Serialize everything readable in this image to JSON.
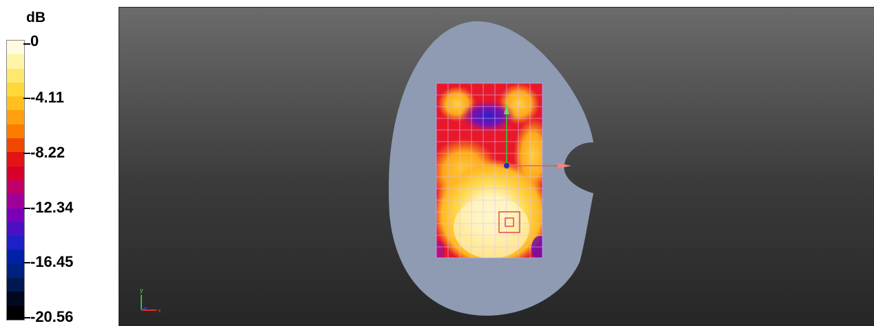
{
  "legend": {
    "unit": "dB",
    "ticks": [
      "0",
      "-4.11",
      "-8.22",
      "-12.34",
      "-16.45",
      "-20.56"
    ],
    "colors": [
      "#fffbe0",
      "#fff5a8",
      "#ffe870",
      "#ffd83a",
      "#ffc020",
      "#ffa010",
      "#ff7a00",
      "#f04800",
      "#e41414",
      "#d8002a",
      "#c00068",
      "#a0009a",
      "#7a00b8",
      "#4a10c4",
      "#1c20c8",
      "#0020a8",
      "#002080",
      "#001850",
      "#000820",
      "#000000"
    ]
  },
  "viewport": {
    "axes_x_label": "x",
    "axes_y_label": "y",
    "accent_colors": {
      "phantom": "#8e9bb2",
      "grid_line": "#d8c0ff",
      "probe_marker": "#e02020"
    }
  }
}
